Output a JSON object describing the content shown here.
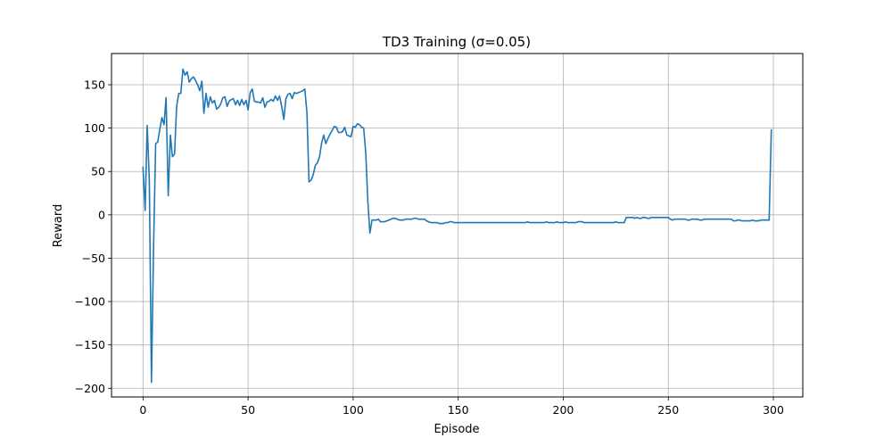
{
  "chart_data": {
    "type": "line",
    "title": "TD3 Training (σ=0.05)",
    "xlabel": "Episode",
    "ylabel": "Reward",
    "xlim": [
      -15,
      314
    ],
    "ylim": [
      -210,
      186
    ],
    "grid": true,
    "xticks": [
      0,
      50,
      100,
      150,
      200,
      250,
      300
    ],
    "xtick_labels": [
      "0",
      "50",
      "100",
      "150",
      "200",
      "250",
      "300"
    ],
    "yticks": [
      150,
      100,
      50,
      0,
      -50,
      -100,
      -150,
      -200
    ],
    "ytick_labels": [
      "150",
      "100",
      "50",
      "0",
      "−50",
      "−100",
      "−150",
      "−200"
    ],
    "series": [
      {
        "color": "#1f77b4",
        "points": [
          [
            0,
            55
          ],
          [
            1,
            5
          ],
          [
            2,
            103
          ],
          [
            3,
            40
          ],
          [
            4,
            -193
          ],
          [
            5,
            -40
          ],
          [
            6,
            82
          ],
          [
            7,
            84
          ],
          [
            8,
            99
          ],
          [
            9,
            112
          ],
          [
            10,
            104
          ],
          [
            11,
            135
          ],
          [
            12,
            22
          ],
          [
            13,
            92
          ],
          [
            14,
            67
          ],
          [
            15,
            70
          ],
          [
            16,
            125
          ],
          [
            17,
            140
          ],
          [
            18,
            140
          ],
          [
            19,
            168
          ],
          [
            20,
            161
          ],
          [
            21,
            165
          ],
          [
            22,
            153
          ],
          [
            23,
            157
          ],
          [
            24,
            159
          ],
          [
            25,
            155
          ],
          [
            26,
            150
          ],
          [
            27,
            143
          ],
          [
            28,
            154
          ],
          [
            29,
            117
          ],
          [
            30,
            140
          ],
          [
            31,
            124
          ],
          [
            32,
            136
          ],
          [
            33,
            129
          ],
          [
            34,
            132
          ],
          [
            35,
            122
          ],
          [
            36,
            124
          ],
          [
            37,
            128
          ],
          [
            38,
            135
          ],
          [
            39,
            136
          ],
          [
            40,
            125
          ],
          [
            41,
            131
          ],
          [
            42,
            133
          ],
          [
            43,
            134
          ],
          [
            44,
            127
          ],
          [
            45,
            132
          ],
          [
            46,
            126
          ],
          [
            47,
            133
          ],
          [
            48,
            127
          ],
          [
            49,
            132
          ],
          [
            50,
            121
          ],
          [
            51,
            141
          ],
          [
            52,
            145
          ],
          [
            53,
            131
          ],
          [
            54,
            130
          ],
          [
            55,
            130
          ],
          [
            56,
            129
          ],
          [
            57,
            135
          ],
          [
            58,
            124
          ],
          [
            59,
            130
          ],
          [
            60,
            131
          ],
          [
            61,
            133
          ],
          [
            62,
            131
          ],
          [
            63,
            137
          ],
          [
            64,
            132
          ],
          [
            65,
            137
          ],
          [
            66,
            125
          ],
          [
            67,
            110
          ],
          [
            68,
            134
          ],
          [
            69,
            139
          ],
          [
            70,
            140
          ],
          [
            71,
            134
          ],
          [
            72,
            141
          ],
          [
            73,
            140
          ],
          [
            74,
            141
          ],
          [
            75,
            142
          ],
          [
            76,
            143
          ],
          [
            77,
            145
          ],
          [
            78,
            118
          ],
          [
            79,
            38
          ],
          [
            80,
            40
          ],
          [
            81,
            46
          ],
          [
            82,
            57
          ],
          [
            83,
            60
          ],
          [
            84,
            67
          ],
          [
            85,
            83
          ],
          [
            86,
            92
          ],
          [
            87,
            82
          ],
          [
            88,
            88
          ],
          [
            89,
            93
          ],
          [
            90,
            97
          ],
          [
            91,
            102
          ],
          [
            92,
            101
          ],
          [
            93,
            95
          ],
          [
            94,
            95
          ],
          [
            95,
            96
          ],
          [
            96,
            101
          ],
          [
            97,
            92
          ],
          [
            98,
            91
          ],
          [
            99,
            90
          ],
          [
            100,
            102
          ],
          [
            101,
            101
          ],
          [
            102,
            105
          ],
          [
            103,
            104
          ],
          [
            104,
            101
          ],
          [
            105,
            100
          ],
          [
            106,
            72
          ],
          [
            107,
            15
          ],
          [
            108,
            -21
          ],
          [
            109,
            -6
          ],
          [
            110,
            -6
          ],
          [
            111,
            -6
          ],
          [
            112,
            -5
          ],
          [
            113,
            -8
          ],
          [
            114,
            -8
          ],
          [
            115,
            -8
          ],
          [
            116,
            -7
          ],
          [
            117,
            -6
          ],
          [
            118,
            -5
          ],
          [
            119,
            -4
          ],
          [
            120,
            -4
          ],
          [
            121,
            -5
          ],
          [
            122,
            -6
          ],
          [
            123,
            -6
          ],
          [
            124,
            -6
          ],
          [
            125,
            -5
          ],
          [
            126,
            -5
          ],
          [
            127,
            -5
          ],
          [
            128,
            -5
          ],
          [
            129,
            -4
          ],
          [
            130,
            -4
          ],
          [
            131,
            -5
          ],
          [
            132,
            -5
          ],
          [
            133,
            -5
          ],
          [
            134,
            -5
          ],
          [
            135,
            -7
          ],
          [
            136,
            -8
          ],
          [
            137,
            -9
          ],
          [
            138,
            -9
          ],
          [
            139,
            -9
          ],
          [
            140,
            -9
          ],
          [
            141,
            -10
          ],
          [
            142,
            -10
          ],
          [
            143,
            -10
          ],
          [
            144,
            -9
          ],
          [
            145,
            -9
          ],
          [
            146,
            -8
          ],
          [
            147,
            -8
          ],
          [
            148,
            -9
          ],
          [
            149,
            -9
          ],
          [
            150,
            -9
          ],
          [
            151,
            -9
          ],
          [
            152,
            -9
          ],
          [
            153,
            -9
          ],
          [
            154,
            -9
          ],
          [
            155,
            -9
          ],
          [
            156,
            -9
          ],
          [
            157,
            -9
          ],
          [
            158,
            -9
          ],
          [
            159,
            -9
          ],
          [
            160,
            -9
          ],
          [
            161,
            -9
          ],
          [
            162,
            -9
          ],
          [
            163,
            -9
          ],
          [
            164,
            -9
          ],
          [
            165,
            -9
          ],
          [
            166,
            -9
          ],
          [
            167,
            -9
          ],
          [
            168,
            -9
          ],
          [
            169,
            -9
          ],
          [
            170,
            -9
          ],
          [
            171,
            -9
          ],
          [
            172,
            -9
          ],
          [
            173,
            -9
          ],
          [
            174,
            -9
          ],
          [
            175,
            -9
          ],
          [
            176,
            -9
          ],
          [
            177,
            -9
          ],
          [
            178,
            -9
          ],
          [
            179,
            -9
          ],
          [
            180,
            -9
          ],
          [
            181,
            -9
          ],
          [
            182,
            -9
          ],
          [
            183,
            -8
          ],
          [
            184,
            -9
          ],
          [
            185,
            -9
          ],
          [
            186,
            -9
          ],
          [
            187,
            -9
          ],
          [
            188,
            -9
          ],
          [
            189,
            -9
          ],
          [
            190,
            -9
          ],
          [
            191,
            -9
          ],
          [
            192,
            -8
          ],
          [
            193,
            -9
          ],
          [
            194,
            -9
          ],
          [
            195,
            -9
          ],
          [
            196,
            -9
          ],
          [
            197,
            -8
          ],
          [
            198,
            -9
          ],
          [
            199,
            -9
          ],
          [
            200,
            -9
          ],
          [
            201,
            -8
          ],
          [
            202,
            -9
          ],
          [
            203,
            -9
          ],
          [
            204,
            -9
          ],
          [
            205,
            -9
          ],
          [
            206,
            -9
          ],
          [
            207,
            -8
          ],
          [
            208,
            -8
          ],
          [
            209,
            -8
          ],
          [
            210,
            -9
          ],
          [
            211,
            -9
          ],
          [
            212,
            -9
          ],
          [
            213,
            -9
          ],
          [
            214,
            -9
          ],
          [
            215,
            -9
          ],
          [
            216,
            -9
          ],
          [
            217,
            -9
          ],
          [
            218,
            -9
          ],
          [
            219,
            -9
          ],
          [
            220,
            -9
          ],
          [
            221,
            -9
          ],
          [
            222,
            -9
          ],
          [
            223,
            -9
          ],
          [
            224,
            -9
          ],
          [
            225,
            -8
          ],
          [
            226,
            -9
          ],
          [
            227,
            -9
          ],
          [
            228,
            -9
          ],
          [
            229,
            -9
          ],
          [
            230,
            -3
          ],
          [
            231,
            -3
          ],
          [
            232,
            -3
          ],
          [
            233,
            -3
          ],
          [
            234,
            -4
          ],
          [
            235,
            -3
          ],
          [
            236,
            -4
          ],
          [
            237,
            -4
          ],
          [
            238,
            -3
          ],
          [
            239,
            -3
          ],
          [
            240,
            -4
          ],
          [
            241,
            -4
          ],
          [
            242,
            -3
          ],
          [
            243,
            -3
          ],
          [
            244,
            -3
          ],
          [
            245,
            -3
          ],
          [
            246,
            -3
          ],
          [
            247,
            -3
          ],
          [
            248,
            -3
          ],
          [
            249,
            -3
          ],
          [
            250,
            -3
          ],
          [
            251,
            -5
          ],
          [
            252,
            -6
          ],
          [
            253,
            -5
          ],
          [
            254,
            -5
          ],
          [
            255,
            -5
          ],
          [
            256,
            -5
          ],
          [
            257,
            -5
          ],
          [
            258,
            -5
          ],
          [
            259,
            -6
          ],
          [
            260,
            -6
          ],
          [
            261,
            -5
          ],
          [
            262,
            -5
          ],
          [
            263,
            -5
          ],
          [
            264,
            -5
          ],
          [
            265,
            -6
          ],
          [
            266,
            -6
          ],
          [
            267,
            -5
          ],
          [
            268,
            -5
          ],
          [
            269,
            -5
          ],
          [
            270,
            -5
          ],
          [
            271,
            -5
          ],
          [
            272,
            -5
          ],
          [
            273,
            -5
          ],
          [
            274,
            -5
          ],
          [
            275,
            -5
          ],
          [
            276,
            -5
          ],
          [
            277,
            -5
          ],
          [
            278,
            -5
          ],
          [
            279,
            -5
          ],
          [
            280,
            -5
          ],
          [
            281,
            -7
          ],
          [
            282,
            -7
          ],
          [
            283,
            -6
          ],
          [
            284,
            -6
          ],
          [
            285,
            -7
          ],
          [
            286,
            -7
          ],
          [
            287,
            -7
          ],
          [
            288,
            -7
          ],
          [
            289,
            -7
          ],
          [
            290,
            -6
          ],
          [
            291,
            -7
          ],
          [
            292,
            -7
          ],
          [
            293,
            -7
          ],
          [
            294,
            -6
          ],
          [
            295,
            -6
          ],
          [
            296,
            -6
          ],
          [
            297,
            -6
          ],
          [
            298,
            -6
          ],
          [
            299,
            98
          ]
        ]
      }
    ]
  }
}
